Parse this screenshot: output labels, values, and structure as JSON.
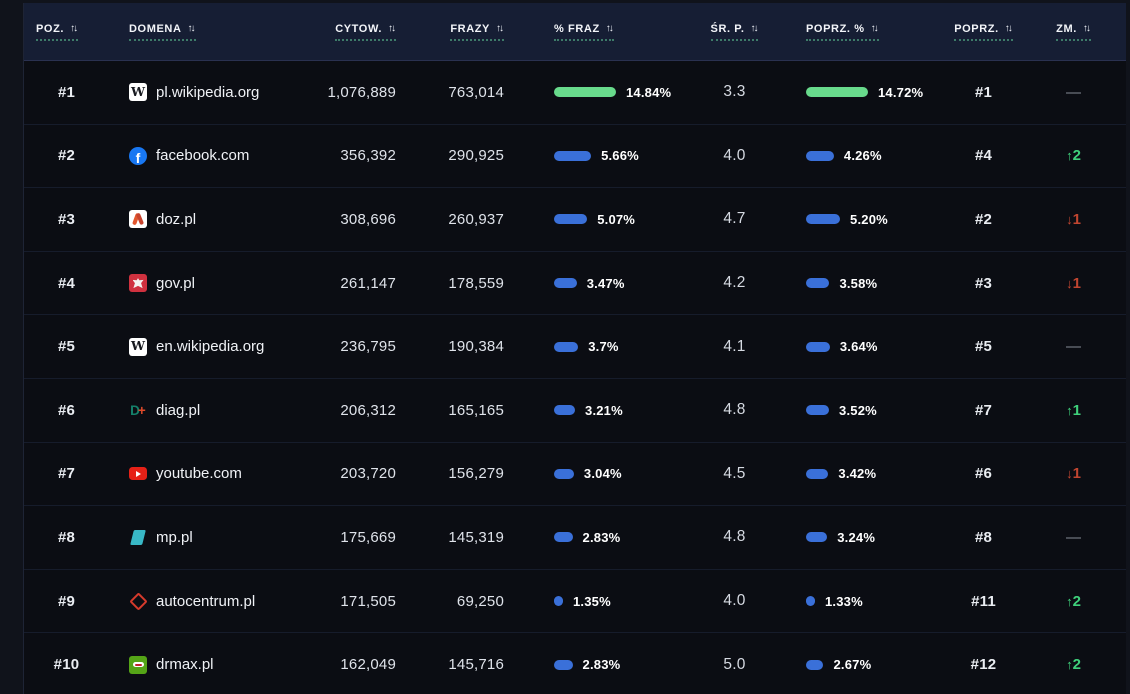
{
  "table": {
    "sort_icon": "↑↓",
    "columns": [
      {
        "id": "pos",
        "label": "POZ."
      },
      {
        "id": "domain",
        "label": "DOMENA"
      },
      {
        "id": "cytow",
        "label": "CYTOW."
      },
      {
        "id": "frazy",
        "label": "FRAZY"
      },
      {
        "id": "fraz_pct",
        "label": "% FRAZ"
      },
      {
        "id": "sr_p",
        "label": "ŚR. P."
      },
      {
        "id": "poprz_pct",
        "label": "POPRZ. %"
      },
      {
        "id": "poprz",
        "label": "POPRZ."
      },
      {
        "id": "zm",
        "label": "ZM."
      }
    ],
    "rows": [
      {
        "pos": "#1",
        "domain": "pl.wikipedia.org",
        "favicon": "wikipedia-icon",
        "cytow": "1,076,889",
        "frazy": "763,014",
        "fraz_pct": "14.84%",
        "sr_p": "3.3",
        "poprz_pct": "14.72%",
        "poprz": "#1",
        "bar_tone": "green",
        "zm": {
          "dir": "none",
          "value": ""
        }
      },
      {
        "pos": "#2",
        "domain": "facebook.com",
        "favicon": "facebook-icon",
        "cytow": "356,392",
        "frazy": "290,925",
        "fraz_pct": "5.66%",
        "sr_p": "4.0",
        "poprz_pct": "4.26%",
        "poprz": "#4",
        "bar_tone": "blue",
        "zm": {
          "dir": "up",
          "value": "2"
        }
      },
      {
        "pos": "#3",
        "domain": "doz.pl",
        "favicon": "doz-icon",
        "cytow": "308,696",
        "frazy": "260,937",
        "fraz_pct": "5.07%",
        "sr_p": "4.7",
        "poprz_pct": "5.20%",
        "poprz": "#2",
        "bar_tone": "blue",
        "zm": {
          "dir": "down",
          "value": "1"
        }
      },
      {
        "pos": "#4",
        "domain": "gov.pl",
        "favicon": "gov-icon",
        "cytow": "261,147",
        "frazy": "178,559",
        "fraz_pct": "3.47%",
        "sr_p": "4.2",
        "poprz_pct": "3.58%",
        "poprz": "#3",
        "bar_tone": "blue",
        "zm": {
          "dir": "down",
          "value": "1"
        }
      },
      {
        "pos": "#5",
        "domain": "en.wikipedia.org",
        "favicon": "wikipedia-icon",
        "cytow": "236,795",
        "frazy": "190,384",
        "fraz_pct": "3.7%",
        "sr_p": "4.1",
        "poprz_pct": "3.64%",
        "poprz": "#5",
        "bar_tone": "blue",
        "zm": {
          "dir": "none",
          "value": ""
        }
      },
      {
        "pos": "#6",
        "domain": "diag.pl",
        "favicon": "diag-icon",
        "cytow": "206,312",
        "frazy": "165,165",
        "fraz_pct": "3.21%",
        "sr_p": "4.8",
        "poprz_pct": "3.52%",
        "poprz": "#7",
        "bar_tone": "blue",
        "zm": {
          "dir": "up",
          "value": "1"
        }
      },
      {
        "pos": "#7",
        "domain": "youtube.com",
        "favicon": "youtube-icon",
        "cytow": "203,720",
        "frazy": "156,279",
        "fraz_pct": "3.04%",
        "sr_p": "4.5",
        "poprz_pct": "3.42%",
        "poprz": "#6",
        "bar_tone": "blue",
        "zm": {
          "dir": "down",
          "value": "1"
        }
      },
      {
        "pos": "#8",
        "domain": "mp.pl",
        "favicon": "mp-icon",
        "cytow": "175,669",
        "frazy": "145,319",
        "fraz_pct": "2.83%",
        "sr_p": "4.8",
        "poprz_pct": "3.24%",
        "poprz": "#8",
        "bar_tone": "blue",
        "zm": {
          "dir": "none",
          "value": ""
        }
      },
      {
        "pos": "#9",
        "domain": "autocentrum.pl",
        "favicon": "autocentrum-icon",
        "cytow": "171,505",
        "frazy": "69,250",
        "fraz_pct": "1.35%",
        "sr_p": "4.0",
        "poprz_pct": "1.33%",
        "poprz": "#11",
        "bar_tone": "blue",
        "zm": {
          "dir": "up",
          "value": "2"
        }
      },
      {
        "pos": "#10",
        "domain": "drmax.pl",
        "favicon": "drmax-icon",
        "cytow": "162,049",
        "frazy": "145,716",
        "fraz_pct": "2.83%",
        "sr_p": "5.0",
        "poprz_pct": "2.67%",
        "poprz": "#12",
        "bar_tone": "blue",
        "zm": {
          "dir": "up",
          "value": "2"
        }
      }
    ]
  },
  "icons": {
    "arrow_up": "↑",
    "arrow_down": "↓",
    "dash": "—"
  },
  "colors": {
    "bar_green": "#68da8c",
    "bar_blue": "#3a70d9",
    "change_up": "#3fd07b",
    "change_down": "#c04530",
    "change_none": "#868c96"
  }
}
